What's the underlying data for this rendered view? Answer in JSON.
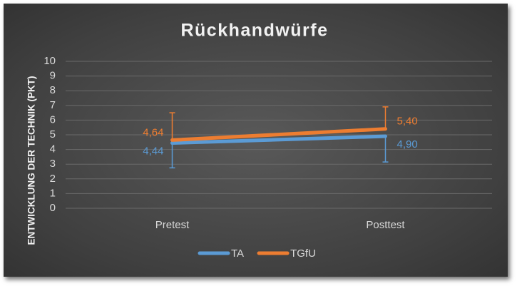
{
  "chart_data": {
    "type": "line",
    "title": "Rückhandwürfe",
    "y_label": "ENTWICKLUNG DER TECHNIK (PKT)",
    "categories": [
      "Pretest",
      "Posttest"
    ],
    "series": [
      {
        "name": "TA",
        "color": "#5b9bd5",
        "values": [
          4.44,
          4.9
        ],
        "value_labels": [
          "4,44",
          "4,90"
        ],
        "errors": [
          1.69,
          1.75
        ],
        "error_direction": "minus"
      },
      {
        "name": "TGfU",
        "color": "#ed7d31",
        "values": [
          4.64,
          5.4
        ],
        "value_labels": [
          "4,64",
          "5,40"
        ],
        "errors": [
          1.86,
          1.5
        ],
        "error_direction": "plus"
      }
    ],
    "ylim": [
      0,
      10
    ],
    "yticks": [
      0,
      1,
      2,
      3,
      4,
      5,
      6,
      7,
      8,
      9,
      10
    ],
    "grid": true,
    "legend": "bottom"
  }
}
